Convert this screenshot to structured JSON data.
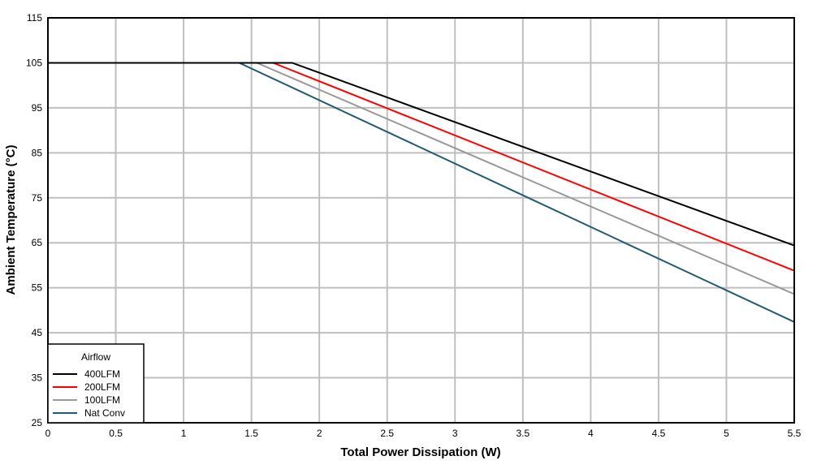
{
  "chart_data": {
    "type": "line",
    "title": "",
    "xlabel": "Total Power Dissipation (W)",
    "ylabel": "Ambient Temperature (°C)",
    "xlim": [
      0,
      5.5
    ],
    "ylim": [
      25,
      115
    ],
    "xticks": [
      "0",
      "0.5",
      "1",
      "1.5",
      "2",
      "2.5",
      "3",
      "3.5",
      "4",
      "4.5",
      "5",
      "5.5"
    ],
    "yticks": [
      "25",
      "35",
      "45",
      "55",
      "65",
      "75",
      "85",
      "95",
      "105",
      "115"
    ],
    "grid": true,
    "legend": {
      "title": "Airflow",
      "placement": "bottom-left"
    },
    "series": [
      {
        "name": "400LFM",
        "color": "#000000",
        "points": [
          [
            0,
            105
          ],
          [
            1.8,
            105
          ],
          [
            5.5,
            64.4
          ]
        ]
      },
      {
        "name": "200LFM",
        "color": "#ff0000",
        "points": [
          [
            0,
            105
          ],
          [
            1.66,
            105
          ],
          [
            5.5,
            58.8
          ]
        ]
      },
      {
        "name": "100LFM",
        "color": "#999999",
        "points": [
          [
            0,
            105
          ],
          [
            1.54,
            105
          ],
          [
            5.5,
            53.6
          ]
        ]
      },
      {
        "name": "Nat Conv",
        "color": "#215a72",
        "points": [
          [
            0,
            105
          ],
          [
            1.41,
            105
          ],
          [
            5.5,
            47.4
          ]
        ]
      }
    ]
  }
}
